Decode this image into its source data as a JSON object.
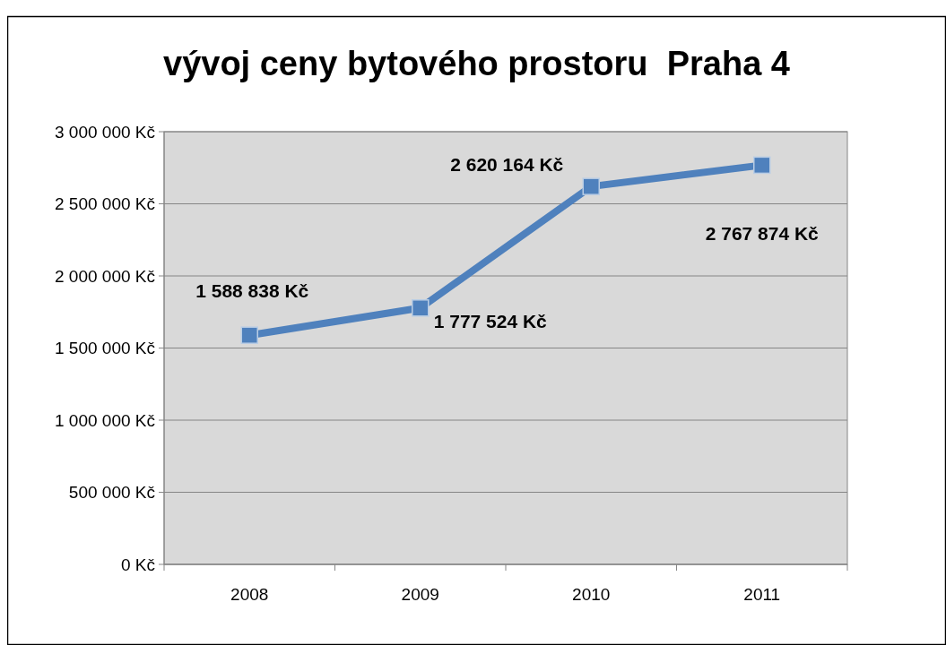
{
  "chart_data": {
    "type": "line",
    "title": "vývoj ceny bytového prostoru  Praha 4",
    "categories": [
      "2008",
      "2009",
      "2010",
      "2011"
    ],
    "series": [
      {
        "color": "#4f81bd",
        "values": [
          1588838,
          1777524,
          2620164,
          2767874
        ],
        "value_labels": [
          "1 588 838 Kč",
          "1 777 524 Kč",
          "2 620 164 Kč",
          "2 767 874 Kč"
        ]
      }
    ],
    "ylim": [
      0,
      3000000
    ],
    "yticks": [
      {
        "value": 0,
        "label": "0 Kč"
      },
      {
        "value": 500000,
        "label": "500 000 Kč"
      },
      {
        "value": 1000000,
        "label": "1 000 000 Kč"
      },
      {
        "value": 1500000,
        "label": "1 500 000 Kč"
      },
      {
        "value": 2000000,
        "label": "2 000 000 Kč"
      },
      {
        "value": 2500000,
        "label": "2 500 000 Kč"
      },
      {
        "value": 3000000,
        "label": "3 000 000 Kč"
      }
    ],
    "grid": "y",
    "marker": "square",
    "line_style": "solid"
  }
}
